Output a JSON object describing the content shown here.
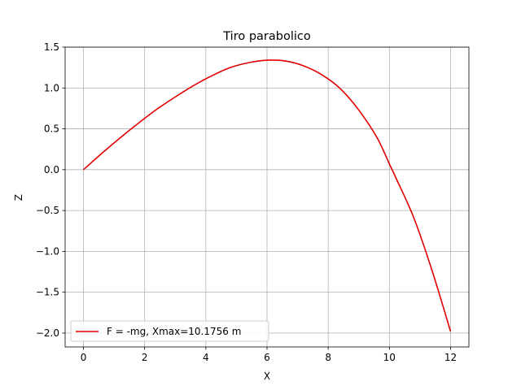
{
  "chart_data": {
    "type": "line",
    "title": "Tiro parabolico",
    "xlabel": "X",
    "ylabel": "Z",
    "xlim": [
      -0.6,
      12.6
    ],
    "ylim": [
      -2.17,
      1.5
    ],
    "xticks": [
      0,
      2,
      4,
      6,
      8,
      10,
      12
    ],
    "xtick_labels": [
      "0",
      "2",
      "4",
      "6",
      "8",
      "10",
      "12"
    ],
    "yticks": [
      -2.0,
      -1.5,
      -1.0,
      -0.5,
      0.0,
      0.5,
      1.0,
      1.5
    ],
    "ytick_labels": [
      "−2.0",
      "−1.5",
      "−1.0",
      "−0.5",
      "0.0",
      "0.5",
      "1.0",
      "1.5"
    ],
    "grid": true,
    "legend_position": "lower-left",
    "series": [
      {
        "name": "F = -mg, Xmax=10.1756 m",
        "color": "#e00000",
        "x": [
          0,
          0.6,
          1.2,
          1.8,
          2.4,
          3.0,
          3.6,
          4.2,
          4.8,
          5.4,
          6.0,
          6.6,
          7.2,
          7.8,
          8.4,
          9.0,
          9.6,
          10.0,
          10.2,
          10.8,
          11.4,
          12.0
        ],
        "y": [
          0.0,
          0.2,
          0.39,
          0.57,
          0.74,
          0.89,
          1.03,
          1.15,
          1.25,
          1.31,
          1.34,
          1.33,
          1.27,
          1.16,
          0.99,
          0.73,
          0.39,
          0.07,
          -0.09,
          -0.59,
          -1.24,
          -1.98
        ]
      }
    ]
  },
  "colors": {
    "axes": "#000000",
    "grid": "#b0b0b0",
    "line": "#e00000"
  }
}
